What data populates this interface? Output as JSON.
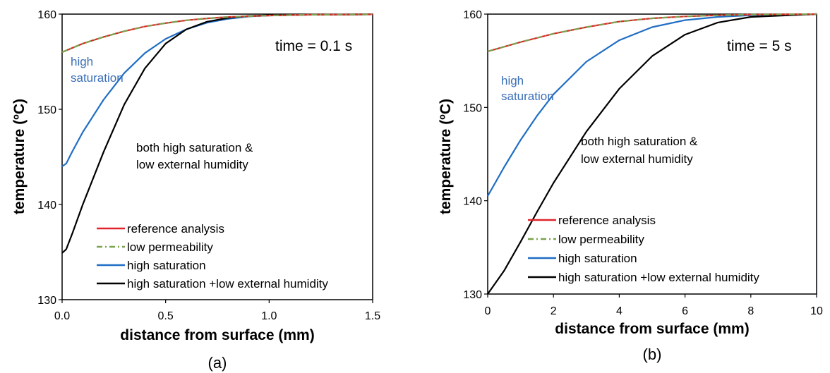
{
  "chart_data": [
    {
      "type": "line",
      "panel_label": "(a)",
      "time_label": "time = 0.1 s",
      "xlabel": "distance from surface (mm)",
      "ylabel": "temperature (ºC)",
      "xlim": [
        0,
        1.5
      ],
      "ylim": [
        130,
        160
      ],
      "x_ticks": [
        "0.0",
        "0.5",
        "1.0",
        "1.5"
      ],
      "y_ticks": [
        "130",
        "140",
        "150",
        "160"
      ],
      "grid": false,
      "legend_position": "bottom-center",
      "annotations": {
        "blue_line1": "high",
        "blue_line2": "saturation",
        "black_line1": "both high saturation &",
        "black_line2": "low external humidity"
      },
      "series": [
        {
          "name": "reference analysis",
          "color": "#e0242a",
          "style": "solid",
          "x": [
            0,
            0.1,
            0.2,
            0.3,
            0.4,
            0.5,
            0.6,
            0.7,
            0.8,
            1.0,
            1.2,
            1.5
          ],
          "y": [
            156.0,
            156.9,
            157.6,
            158.2,
            158.7,
            159.05,
            159.35,
            159.55,
            159.7,
            159.85,
            159.93,
            159.97
          ]
        },
        {
          "name": "low permeability",
          "color": "#7aa34e",
          "style": "dashdot",
          "x": [
            0,
            0.1,
            0.2,
            0.3,
            0.4,
            0.5,
            0.6,
            0.7,
            0.8,
            1.0,
            1.2,
            1.5
          ],
          "y": [
            156.0,
            156.9,
            157.6,
            158.2,
            158.7,
            159.05,
            159.35,
            159.55,
            159.7,
            159.85,
            159.93,
            159.97
          ]
        },
        {
          "name": "high saturation",
          "color": "#1f6ec4",
          "style": "solid",
          "x": [
            0,
            0.02,
            0.05,
            0.1,
            0.2,
            0.3,
            0.4,
            0.5,
            0.6,
            0.7,
            0.8,
            0.9,
            1.0,
            1.2,
            1.5
          ],
          "y": [
            144.0,
            144.3,
            145.6,
            147.6,
            151.0,
            153.8,
            155.9,
            157.4,
            158.4,
            159.1,
            159.5,
            159.75,
            159.85,
            159.93,
            159.97
          ]
        },
        {
          "name": "high saturation +low external humidity",
          "color": "#000000",
          "style": "solid",
          "x": [
            0,
            0.02,
            0.05,
            0.1,
            0.2,
            0.3,
            0.4,
            0.5,
            0.6,
            0.7,
            0.8,
            0.9,
            1.0,
            1.2,
            1.5
          ],
          "y": [
            134.9,
            135.3,
            137.0,
            140.0,
            145.5,
            150.5,
            154.3,
            156.9,
            158.4,
            159.2,
            159.6,
            159.8,
            159.88,
            159.94,
            159.97
          ]
        }
      ]
    },
    {
      "type": "line",
      "panel_label": "(b)",
      "time_label": "time = 5 s",
      "xlabel": "distance from surface (mm)",
      "ylabel": "temperature (ºC)",
      "xlim": [
        0,
        10
      ],
      "ylim": [
        130,
        160
      ],
      "x_ticks": [
        "0",
        "2",
        "4",
        "6",
        "8",
        "10"
      ],
      "y_ticks": [
        "130",
        "140",
        "150",
        "160"
      ],
      "grid": false,
      "legend_position": "bottom-right",
      "annotations": {
        "blue_line1": "high",
        "blue_line2": "saturation",
        "black_line1": "both high saturation &",
        "black_line2": "low external humidity"
      },
      "series": [
        {
          "name": "reference analysis",
          "color": "#e0242a",
          "style": "solid",
          "x": [
            0,
            1,
            2,
            3,
            4,
            5,
            6,
            7,
            8,
            10
          ],
          "y": [
            156.0,
            157.0,
            157.9,
            158.6,
            159.2,
            159.55,
            159.75,
            159.88,
            159.95,
            160.0
          ]
        },
        {
          "name": "low permeability",
          "color": "#7aa34e",
          "style": "dashdot",
          "x": [
            0,
            1,
            2,
            3,
            4,
            5,
            6,
            7,
            8,
            10
          ],
          "y": [
            156.0,
            157.0,
            157.9,
            158.6,
            159.2,
            159.55,
            159.75,
            159.88,
            159.95,
            160.0
          ]
        },
        {
          "name": "high saturation",
          "color": "#1f6ec4",
          "style": "solid",
          "x": [
            0,
            0.5,
            1,
            1.5,
            2,
            3,
            4,
            5,
            6,
            7,
            8,
            10
          ],
          "y": [
            140.5,
            143.6,
            146.5,
            149.1,
            151.4,
            154.9,
            157.2,
            158.6,
            159.35,
            159.7,
            159.88,
            160.0
          ]
        },
        {
          "name": "high saturation +low external humidity",
          "color": "#000000",
          "style": "solid",
          "x": [
            0,
            0.5,
            1,
            1.5,
            2,
            3,
            4,
            5,
            6,
            7,
            8,
            10
          ],
          "y": [
            130.0,
            132.5,
            135.6,
            138.8,
            141.9,
            147.4,
            152.0,
            155.5,
            157.8,
            159.1,
            159.7,
            160.0
          ]
        }
      ]
    }
  ]
}
